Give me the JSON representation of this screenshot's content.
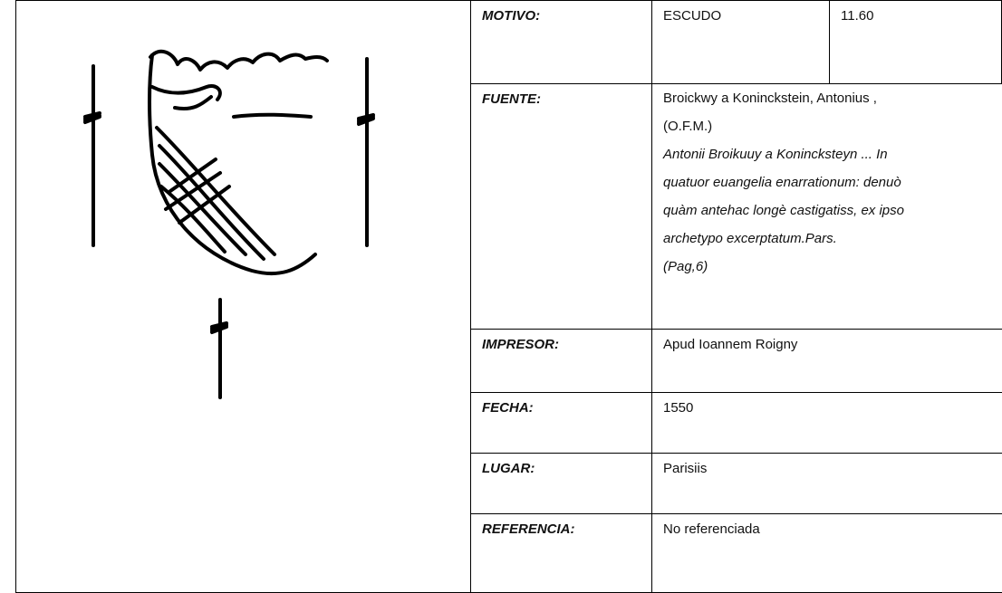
{
  "record": {
    "motivo": {
      "label": "MOTIVO:",
      "value": "ESCUDO",
      "code": "11.60"
    },
    "fuente": {
      "label": "FUENTE:",
      "author": [
        "Broickwy a Koninckstein, Antonius ,",
        "(O.F.M.)"
      ],
      "title": [
        "Antonii Broikuuy a Konincksteyn ... In",
        "quatuor euangelia enarrationum: denuò",
        "quàm antehac longè castigatiss, ex ipso",
        "archetypo excerptatum.Pars."
      ],
      "page": "(Pag,6)"
    },
    "impresor": {
      "label": "IMPRESOR:",
      "value": "Apud Ioannem Roigny"
    },
    "fecha": {
      "label": "FECHA:",
      "value": "1550"
    },
    "lugar": {
      "label": "LUGAR:",
      "value": "Parisiis"
    },
    "referencia": {
      "label": "REFERENCIA:",
      "value": "No referenciada"
    }
  }
}
